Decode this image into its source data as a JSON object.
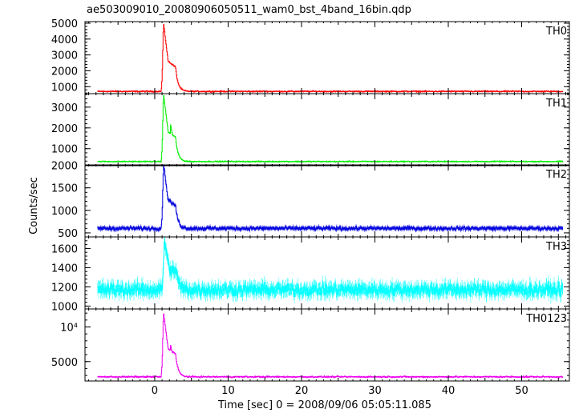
{
  "chart_data": {
    "type": "line",
    "title": "ae503009010_20080906050511_wam0_bst_4band_16bin.qdp",
    "xlabel": "Time [sec] 0 = 2008/09/06 05:05:11.085",
    "ylabel": "Counts/sec",
    "xlim": [
      -9.5,
      56.5
    ],
    "x_ticks": [
      0,
      10,
      20,
      30,
      40,
      50
    ],
    "x_tick_labels": [
      "0",
      "10",
      "20",
      "30",
      "40",
      "50"
    ],
    "grid": false,
    "legend": "none",
    "profile_note": "Each panel is a binned light curve: flat background, sharp burst peaking near t=1.2 s, secondary shoulder near t=2.4 s, decay to background by t≈4 s.",
    "panels": [
      {
        "name": "TH0",
        "color": "#ff0000",
        "ylim": [
          560,
          5100
        ],
        "y_ticks": [
          1000,
          2000,
          3000,
          4000,
          5000
        ],
        "y_tick_labels": [
          "1000",
          "2000",
          "3000",
          "4000",
          "5000"
        ],
        "background": 700,
        "peak": 4900,
        "peak_time": 1.2,
        "shoulder": 2500,
        "noise": 45
      },
      {
        "name": "TH1",
        "color": "#00ee00",
        "ylim": [
          180,
          3650
        ],
        "y_ticks": [
          1000,
          2000,
          3000
        ],
        "y_tick_labels": [
          "1000",
          "2000",
          "3000"
        ],
        "background": 380,
        "peak": 3550,
        "peak_time": 1.2,
        "shoulder": 2200,
        "noise": 30
      },
      {
        "name": "TH2",
        "color": "#0000dd",
        "ylim": [
          410,
          2010
        ],
        "y_ticks": [
          500,
          1000,
          1500,
          2000
        ],
        "y_tick_labels": [
          "500",
          "1000",
          "1500",
          "2000"
        ],
        "background": 600,
        "peak": 2000,
        "peak_time": 1.2,
        "shoulder": 1200,
        "noise": 45
      },
      {
        "name": "TH3",
        "color": "#00ffff",
        "ylim": [
          970,
          1720
        ],
        "y_ticks": [
          1000,
          1200,
          1400,
          1600
        ],
        "y_tick_labels": [
          "1000",
          "1200",
          "1400",
          "1600"
        ],
        "background": 1170,
        "peak": 1680,
        "peak_time": 1.3,
        "shoulder": 1300,
        "noise": 70
      },
      {
        "name": "TH0123",
        "color": "#ee00ee",
        "ylim": [
          2200,
          12600
        ],
        "y_ticks": [
          5000,
          10000
        ],
        "y_tick_labels": [
          "5000",
          "10⁴"
        ],
        "background": 2800,
        "peak": 11800,
        "peak_time": 1.2,
        "shoulder": 7500,
        "noise": 110
      }
    ]
  }
}
